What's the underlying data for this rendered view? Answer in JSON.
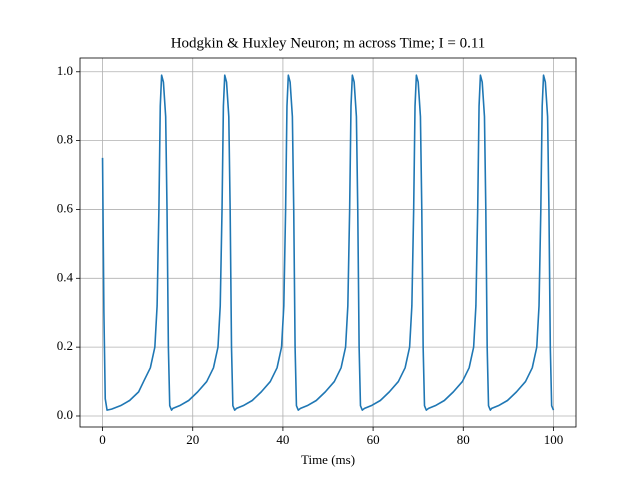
{
  "chart_data": {
    "type": "line",
    "title": "Hodgkin & Huxley Neuron; m across Time; I = 0.11",
    "x_label": "Time (ms)",
    "xlim": [
      -5,
      105
    ],
    "ylim": [
      -0.032,
      1.04
    ],
    "xticks": [
      0,
      20,
      40,
      60,
      80,
      100
    ],
    "yticks": [
      {
        "value": 0,
        "label": "0.0"
      },
      {
        "value": 0.2,
        "label": "0.2"
      },
      {
        "value": 0.4,
        "label": "0.4"
      },
      {
        "value": 0.6,
        "label": "0.6"
      },
      {
        "value": 0.8,
        "label": "0.8"
      },
      {
        "value": 1,
        "label": "1.0"
      }
    ],
    "grid": true,
    "series": [
      {
        "color": "#1f77b4",
        "x": [
          0,
          0.3,
          0.6,
          1,
          2,
          4,
          6,
          8,
          9.1,
          10.6,
          11.6,
          12.1,
          12.5,
          12.8,
          13.1,
          13.5,
          14,
          14.3,
          14.6,
          14.9,
          15.3,
          15.6,
          17.1,
          19.1,
          21.1,
          23.1,
          24.6,
          25.6,
          26.1,
          26.5,
          26.8,
          27.1,
          27.5,
          28,
          28.3,
          28.6,
          28.9,
          29.3,
          29.7,
          31.2,
          33.2,
          35.2,
          37.2,
          38.7,
          39.7,
          40.2,
          40.6,
          40.9,
          41.2,
          41.6,
          42.1,
          42.4,
          42.7,
          43,
          43.4,
          43.9,
          45.4,
          47.4,
          49.4,
          51.4,
          52.9,
          53.9,
          54.4,
          54.8,
          55.1,
          55.4,
          55.8,
          56.3,
          56.6,
          56.9,
          57.2,
          57.6,
          58.1,
          59.6,
          61.6,
          63.6,
          65.6,
          67.1,
          68.1,
          68.6,
          69,
          69.3,
          69.6,
          70,
          70.5,
          70.8,
          71.1,
          71.4,
          71.8,
          72.3,
          73.8,
          75.8,
          77.8,
          79.8,
          81.3,
          82.3,
          82.8,
          83.2,
          83.5,
          83.8,
          84.2,
          84.7,
          85,
          85.3,
          85.6,
          86,
          86.3,
          87.8,
          89.8,
          91.8,
          93.8,
          95.3,
          96.3,
          96.8,
          97.2,
          97.5,
          97.8,
          98.2,
          98.7,
          99,
          99.3,
          99.6,
          100
        ],
        "values": [
          0.75,
          0.3,
          0.05,
          0.017,
          0.02,
          0.03,
          0.045,
          0.07,
          0.1,
          0.14,
          0.2,
          0.32,
          0.6,
          0.9,
          0.99,
          0.97,
          0.87,
          0.6,
          0.2,
          0.03,
          0.017,
          0.022,
          0.03,
          0.045,
          0.07,
          0.1,
          0.14,
          0.2,
          0.32,
          0.6,
          0.9,
          0.99,
          0.97,
          0.87,
          0.6,
          0.2,
          0.03,
          0.017,
          0.022,
          0.03,
          0.045,
          0.07,
          0.1,
          0.14,
          0.2,
          0.32,
          0.6,
          0.9,
          0.99,
          0.97,
          0.87,
          0.6,
          0.2,
          0.03,
          0.017,
          0.022,
          0.03,
          0.045,
          0.07,
          0.1,
          0.14,
          0.2,
          0.32,
          0.6,
          0.9,
          0.99,
          0.97,
          0.87,
          0.6,
          0.2,
          0.03,
          0.017,
          0.022,
          0.03,
          0.045,
          0.07,
          0.1,
          0.14,
          0.2,
          0.32,
          0.6,
          0.9,
          0.99,
          0.97,
          0.87,
          0.6,
          0.2,
          0.03,
          0.017,
          0.022,
          0.03,
          0.045,
          0.07,
          0.1,
          0.14,
          0.2,
          0.32,
          0.6,
          0.9,
          0.99,
          0.97,
          0.87,
          0.6,
          0.2,
          0.03,
          0.017,
          0.022,
          0.03,
          0.045,
          0.07,
          0.1,
          0.14,
          0.2,
          0.32,
          0.6,
          0.9,
          0.99,
          0.97,
          0.87,
          0.6,
          0.2,
          0.03,
          0.017
        ]
      }
    ]
  }
}
